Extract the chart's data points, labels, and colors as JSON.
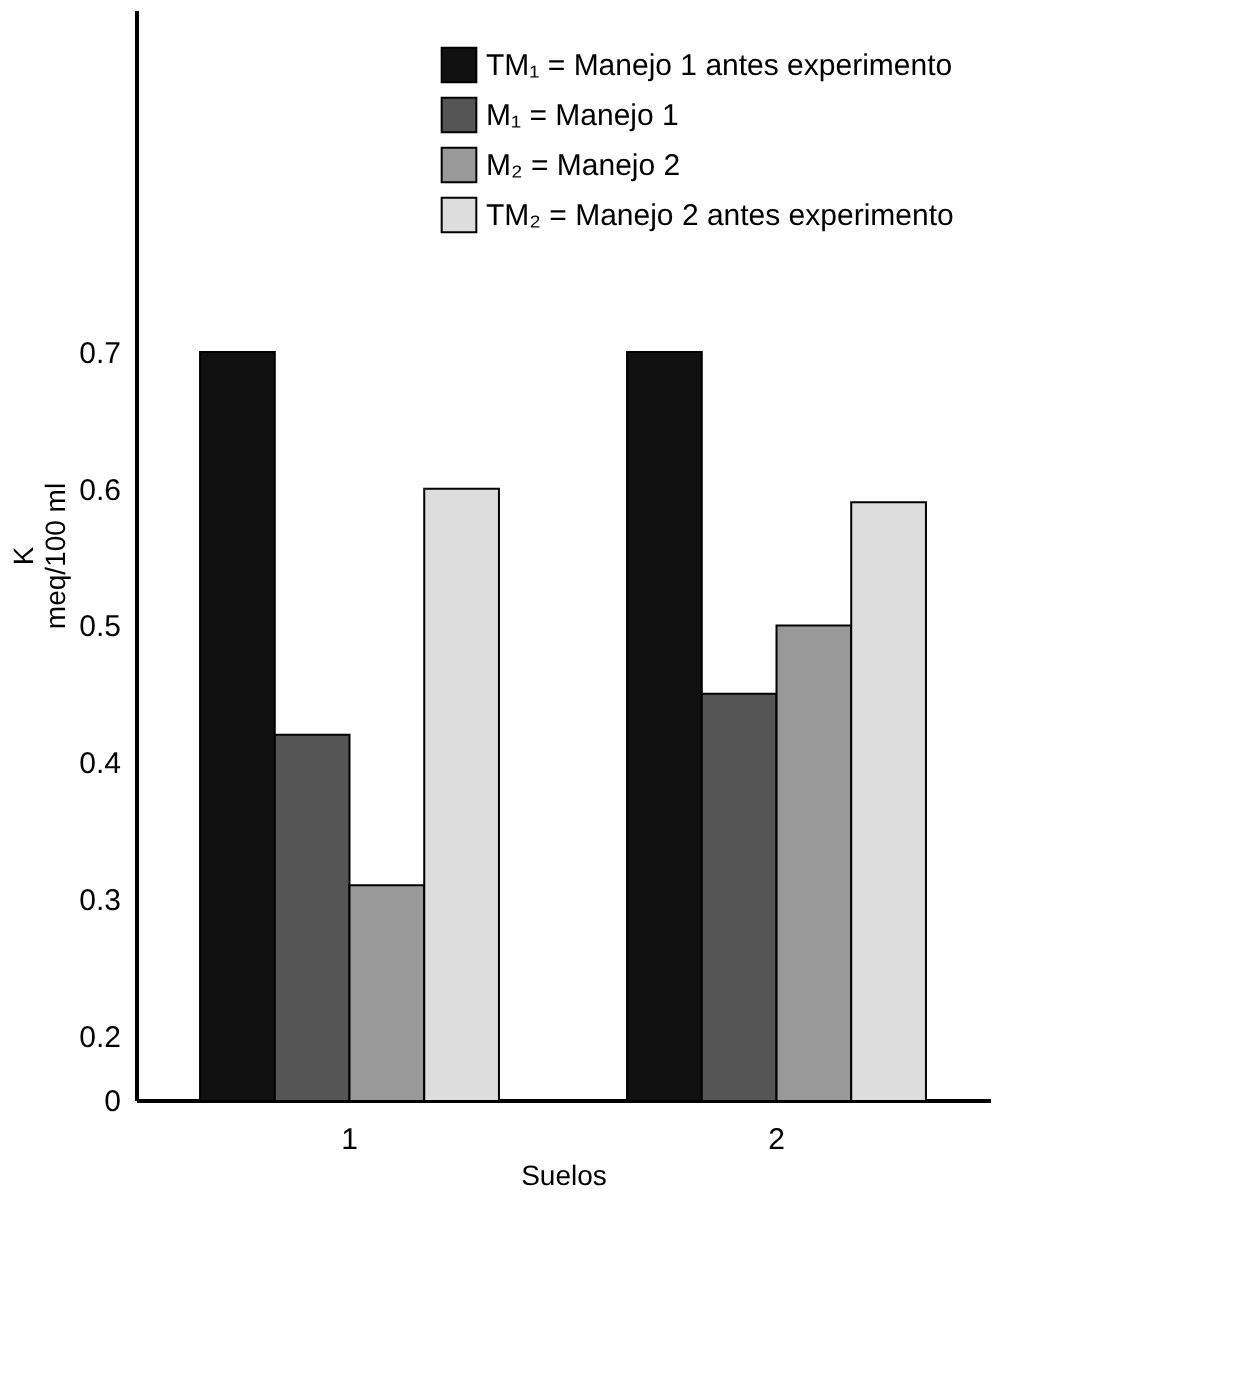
{
  "chart_data": {
    "type": "bar",
    "xlabel": "Suelos",
    "ylabel": "K meq/100 ml",
    "categories": [
      "1",
      "2"
    ],
    "series": [
      {
        "name": "TM₁ = Manejo 1 antes experimento",
        "color": "#111111",
        "values": [
          0.7,
          0.7
        ]
      },
      {
        "name": "M₁ = Manejo 1",
        "color": "#555555",
        "values": [
          0.42,
          0.45
        ]
      },
      {
        "name": "M₂ = Manejo 2",
        "color": "#999999",
        "values": [
          0.31,
          0.5
        ]
      },
      {
        "name": "TM₂ = Manejo 2 antes experimento",
        "color": "#dddddd",
        "values": [
          0.6,
          0.59
        ]
      }
    ],
    "ylim": [
      0.153,
      0.95
    ],
    "yticks": [
      {
        "value": 0.153,
        "label": "0"
      },
      0.2,
      0.3,
      0.4,
      0.5,
      0.6,
      0.7
    ],
    "grid": false,
    "legend": "top right"
  }
}
